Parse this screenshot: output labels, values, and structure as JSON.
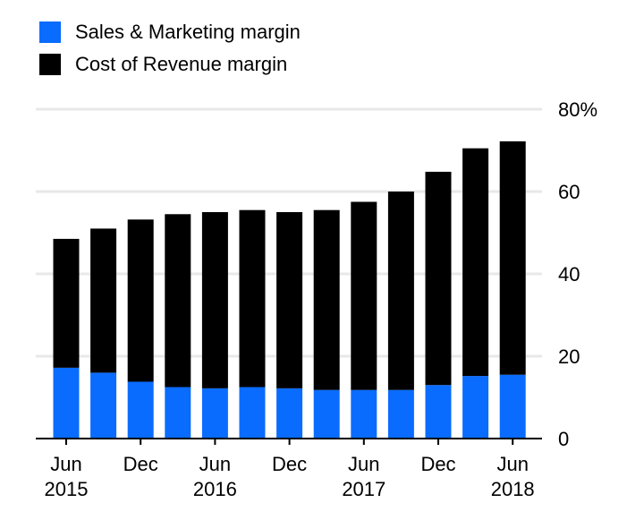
{
  "chart_data": {
    "type": "bar",
    "stacked": true,
    "categories": [
      "Jun 2015",
      "Sep 2015",
      "Dec 2015",
      "Mar 2016",
      "Jun 2016",
      "Sep 2016",
      "Dec 2016",
      "Mar 2017",
      "Jun 2017",
      "Sep 2017",
      "Dec 2017",
      "Mar 2018",
      "Jun 2018"
    ],
    "series": [
      {
        "name": "Sales & Marketing margin",
        "color": "#0a6cff",
        "values": [
          17.2,
          16.0,
          13.8,
          12.5,
          12.2,
          12.5,
          12.2,
          11.8,
          11.8,
          11.8,
          13.0,
          15.2,
          15.5
        ]
      },
      {
        "name": "Cost of Revenue margin",
        "color": "#000000",
        "values": [
          31.3,
          35.0,
          39.4,
          42.0,
          42.8,
          43.0,
          42.8,
          43.7,
          45.7,
          48.2,
          51.8,
          55.3,
          56.7
        ]
      }
    ],
    "ylim": [
      0,
      80
    ],
    "y_ticks": [
      {
        "value": 0,
        "label": "0"
      },
      {
        "value": 20,
        "label": "20"
      },
      {
        "value": 40,
        "label": "40"
      },
      {
        "value": 60,
        "label": "60"
      },
      {
        "value": 80,
        "label": "80%"
      }
    ],
    "x_ticks": [
      {
        "index": 0,
        "line1": "Jun",
        "line2": "2015"
      },
      {
        "index": 2,
        "line1": "Dec",
        "line2": ""
      },
      {
        "index": 4,
        "line1": "Jun",
        "line2": "2016"
      },
      {
        "index": 6,
        "line1": "Dec",
        "line2": ""
      },
      {
        "index": 8,
        "line1": "Jun",
        "line2": "2017"
      },
      {
        "index": 10,
        "line1": "Dec",
        "line2": ""
      },
      {
        "index": 12,
        "line1": "Jun",
        "line2": "2018"
      }
    ],
    "grid": true,
    "legend_position": "top-left",
    "y_axis_side": "right"
  }
}
